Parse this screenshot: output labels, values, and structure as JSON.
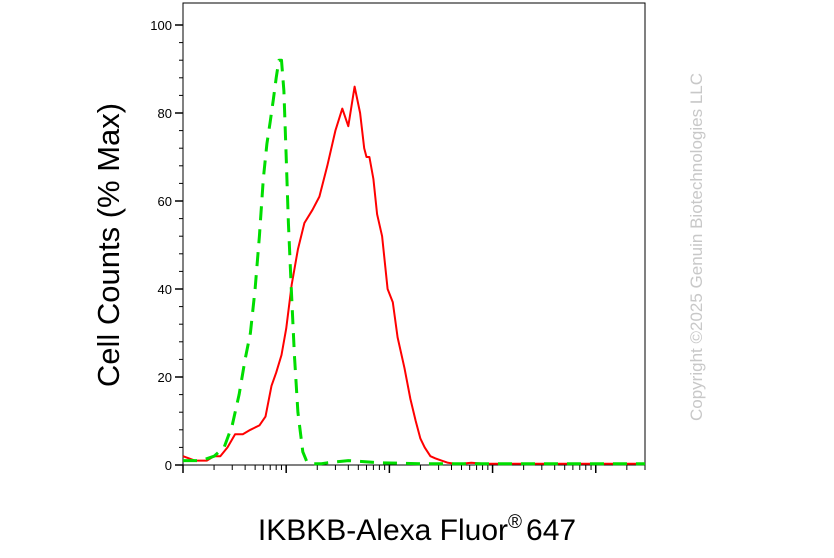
{
  "chart_data": {
    "type": "line",
    "title": "",
    "xlabel": "IKBKB-Alexa Fluor",
    "xlabel_superscript": "®",
    "xlabel_suffix": "647",
    "ylabel": "Cell Counts (% Max)",
    "xscale": "log",
    "xlim": [
      0.1,
      3000
    ],
    "ylim": [
      0,
      105
    ],
    "yticks": [
      0,
      20,
      40,
      60,
      80,
      100
    ],
    "ytick_labels": [
      "0",
      "20",
      "40",
      "60",
      "80",
      "100"
    ],
    "grid": false,
    "legend": "none",
    "series": [
      {
        "color": "#ff0000",
        "style": "solid",
        "x": [
          0.1,
          0.13,
          0.17,
          0.2,
          0.23,
          0.27,
          0.32,
          0.38,
          0.45,
          0.55,
          0.63,
          0.72,
          0.8,
          0.9,
          1,
          1.13,
          1.3,
          1.5,
          1.8,
          2.1,
          2.5,
          3,
          3.5,
          4,
          4.6,
          5.2,
          5.7,
          6,
          6.4,
          7,
          7.6,
          8.5,
          9.6,
          10.8,
          12,
          14,
          16,
          18,
          20,
          22,
          25,
          28,
          32,
          37,
          43,
          50,
          62,
          85,
          130,
          250,
          600,
          1500,
          3000
        ],
        "y": [
          2,
          1,
          1,
          2,
          2,
          4,
          7,
          7,
          8,
          9,
          11,
          18,
          21,
          25,
          31,
          41,
          49,
          55,
          58,
          61,
          68,
          76,
          81,
          77,
          86,
          80,
          72,
          70,
          70,
          65,
          57,
          52,
          40,
          37,
          29,
          22,
          15,
          10,
          6,
          4,
          2,
          1.5,
          1,
          0.5,
          0.3,
          0.3,
          0.5,
          0.3,
          0.3,
          0.3,
          0.3,
          0.3,
          0.3
        ]
      },
      {
        "color": "#00dd00",
        "style": "dashed",
        "x": [
          0.1,
          0.15,
          0.2,
          0.25,
          0.3,
          0.35,
          0.4,
          0.45,
          0.5,
          0.55,
          0.6,
          0.65,
          0.7,
          0.75,
          0.8,
          0.85,
          0.9,
          0.95,
          1.0,
          1.05,
          1.12,
          1.2,
          1.3,
          1.45,
          1.6,
          1.8,
          2.0,
          2.2,
          2.5,
          3,
          4,
          8,
          20,
          100,
          3000
        ],
        "y": [
          1,
          1,
          2,
          4,
          9,
          16,
          24,
          30,
          40,
          52,
          65,
          73,
          78,
          83,
          88,
          92,
          92,
          85,
          70,
          55,
          40,
          25,
          12,
          3,
          0.5,
          0.3,
          0.3,
          0.3,
          0.5,
          0.7,
          1,
          0.5,
          0.3,
          0.3,
          0.3
        ]
      }
    ]
  },
  "watermark": "Copyright ©2025 Genuin Biotechnologies LLC"
}
